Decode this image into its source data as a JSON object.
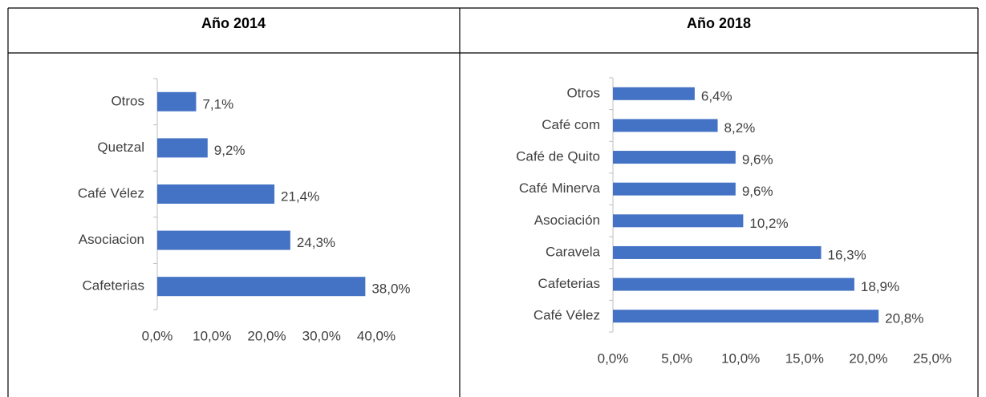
{
  "chart_data": [
    {
      "type": "bar",
      "orientation": "horizontal",
      "title": "Año 2014",
      "categories": [
        "Otros",
        "Quetzal",
        "Café Vélez",
        "Asociacion",
        "Cafeterias"
      ],
      "values": [
        7.1,
        9.2,
        21.4,
        24.3,
        38.0
      ],
      "value_labels": [
        "7,1%",
        "9,2%",
        "21,4%",
        "24,3%",
        "38,0%"
      ],
      "color": "#4472c4",
      "grid": false,
      "xlim": [
        0,
        40
      ],
      "xticks": [
        {
          "value": 0,
          "label": "0,0%"
        },
        {
          "value": 10,
          "label": "10,0%"
        },
        {
          "value": 20,
          "label": "20,0%"
        },
        {
          "value": 30,
          "label": "30,0%"
        },
        {
          "value": 40,
          "label": "40,0%"
        }
      ]
    },
    {
      "type": "bar",
      "orientation": "horizontal",
      "title": "Año 2018",
      "categories": [
        "Otros",
        "Café com",
        "Café de Quito",
        "Café Minerva",
        "Asociación",
        "Caravela",
        "Cafeterias",
        "Café Vélez"
      ],
      "values": [
        6.4,
        8.2,
        9.6,
        9.6,
        10.2,
        16.3,
        18.9,
        20.8
      ],
      "value_labels": [
        "6,4%",
        "8,2%",
        "9,6%",
        "9,6%",
        "10,2%",
        "16,3%",
        "18,9%",
        "20,8%"
      ],
      "color": "#4472c4",
      "grid": false,
      "xlim": [
        0,
        25
      ],
      "xticks": [
        {
          "value": 0,
          "label": "0,0%"
        },
        {
          "value": 5,
          "label": "5,0%"
        },
        {
          "value": 10,
          "label": "10,0%"
        },
        {
          "value": 15,
          "label": "15,0%"
        },
        {
          "value": 20,
          "label": "20,0%"
        },
        {
          "value": 25,
          "label": "25,0%"
        }
      ]
    }
  ]
}
